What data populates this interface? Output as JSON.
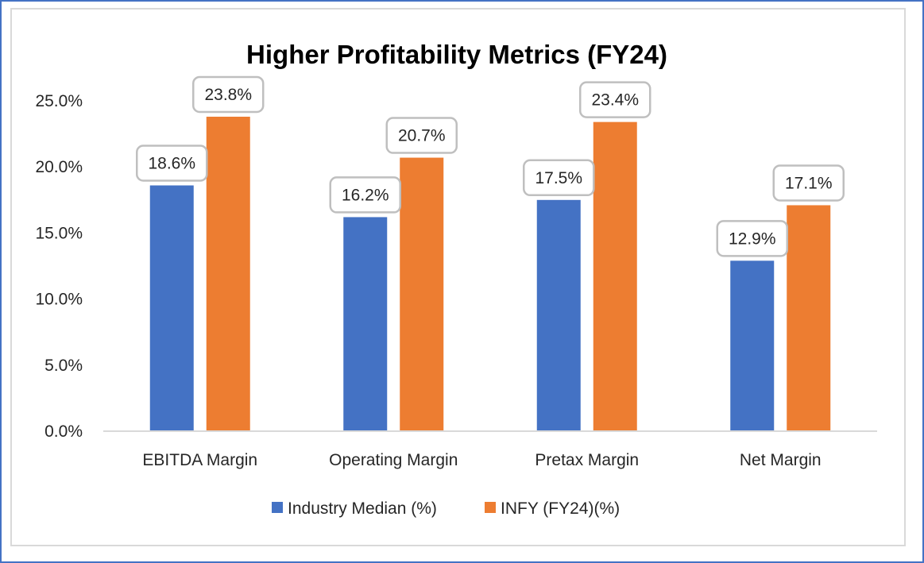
{
  "chart_data": {
    "type": "bar",
    "title": "Higher Profitability Metrics (FY24)",
    "xlabel": "",
    "ylabel": "",
    "categories": [
      "EBITDA Margin",
      "Operating Margin",
      "Pretax Margin",
      "Net Margin"
    ],
    "series": [
      {
        "name": "Industry Median (%)",
        "color": "#4472C4",
        "values": [
          18.6,
          16.2,
          17.5,
          12.9
        ],
        "labels": [
          "18.6%",
          "16.2%",
          "17.5%",
          "12.9%"
        ]
      },
      {
        "name": "INFY (FY24)(%)",
        "color": "#ED7D31",
        "values": [
          23.8,
          20.7,
          23.4,
          17.1
        ],
        "labels": [
          "23.8%",
          "20.7%",
          "23.4%",
          "17.1%"
        ]
      }
    ],
    "ylim": [
      0,
      25
    ],
    "yticks": [
      0,
      5,
      10,
      15,
      20,
      25
    ],
    "ytick_labels": [
      "0.0%",
      "5.0%",
      "10.0%",
      "15.0%",
      "20.0%",
      "25.0%"
    ],
    "grid": false,
    "legend_position": "bottom",
    "data_labels": true
  }
}
